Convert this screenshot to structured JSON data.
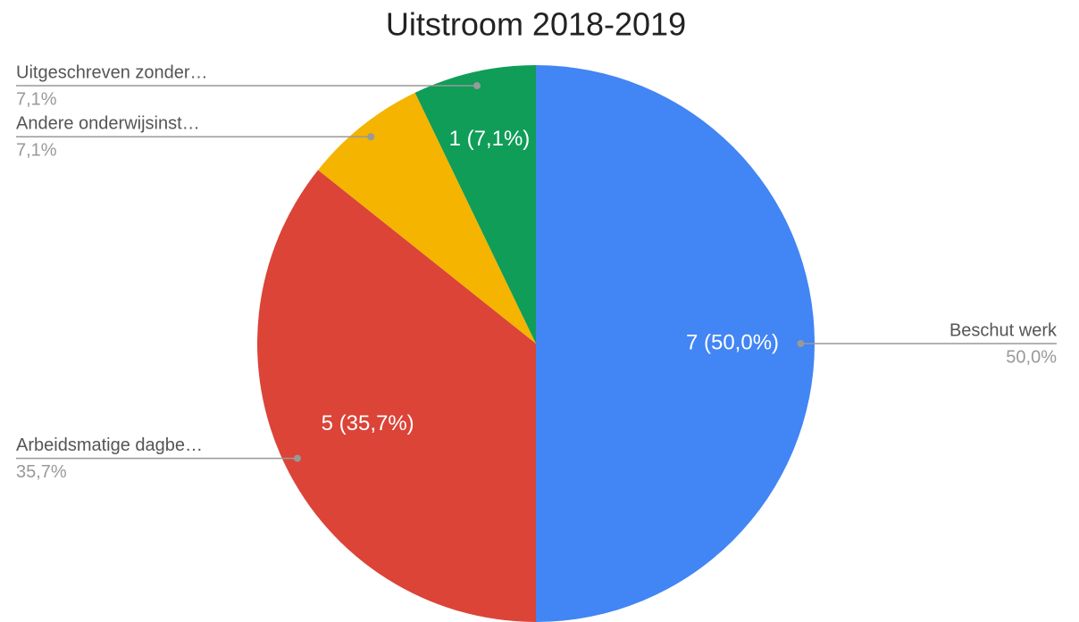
{
  "chart_data": {
    "type": "pie",
    "title": "Uitstroom 2018-2019",
    "categories": [
      "Beschut werk",
      "Arbeidsmatige dagbe…",
      "Andere onderwijsinst…",
      "Uitgeschreven zonder…"
    ],
    "values": [
      7,
      5,
      1,
      1
    ],
    "value_labels": [
      "7 (50,0%)",
      "5 (35,7%)",
      null,
      "1 (7,1%)"
    ],
    "percent_labels": [
      "50,0%",
      "35,7%",
      "7,1%",
      "7,1%"
    ],
    "colors": [
      "#4285f4",
      "#db4437",
      "#f4b400",
      "#0f9d58"
    ]
  }
}
